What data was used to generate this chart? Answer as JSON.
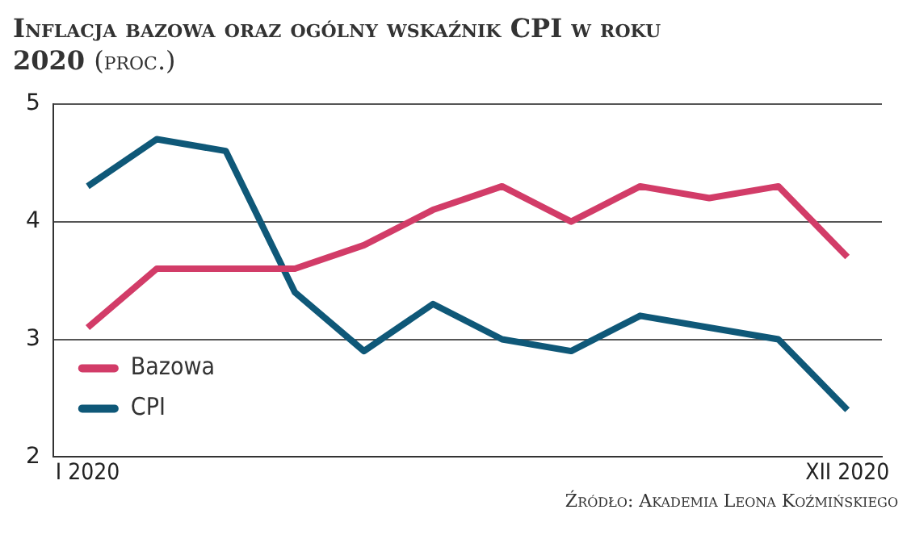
{
  "chart_data": {
    "type": "line",
    "title": "Inflacja bazowa oraz ogólny wskaźnik CPI w roku 2020",
    "subtitle": "(proc.)",
    "categories": [
      "I 2020",
      null,
      null,
      null,
      null,
      null,
      null,
      null,
      null,
      null,
      null,
      "XII 2020"
    ],
    "series": [
      {
        "name": "Bazowa",
        "color": "#d23c68",
        "values": [
          3.1,
          3.6,
          3.6,
          3.6,
          3.8,
          4.1,
          4.3,
          4.0,
          4.3,
          4.2,
          4.3,
          3.7
        ]
      },
      {
        "name": "CPI",
        "color": "#0f5878",
        "values": [
          4.3,
          4.7,
          4.6,
          3.4,
          2.9,
          3.3,
          3.0,
          2.9,
          3.2,
          3.1,
          3.0,
          2.4
        ]
      }
    ],
    "ylim": [
      2,
      5
    ],
    "yticks": [
      2,
      3,
      4,
      5
    ],
    "grid": "y",
    "legend": "bottom left",
    "marker": "none",
    "line_style": "solid",
    "annotations": [
      "Źródło: Akademia Leona Koźmińskiego"
    ]
  }
}
